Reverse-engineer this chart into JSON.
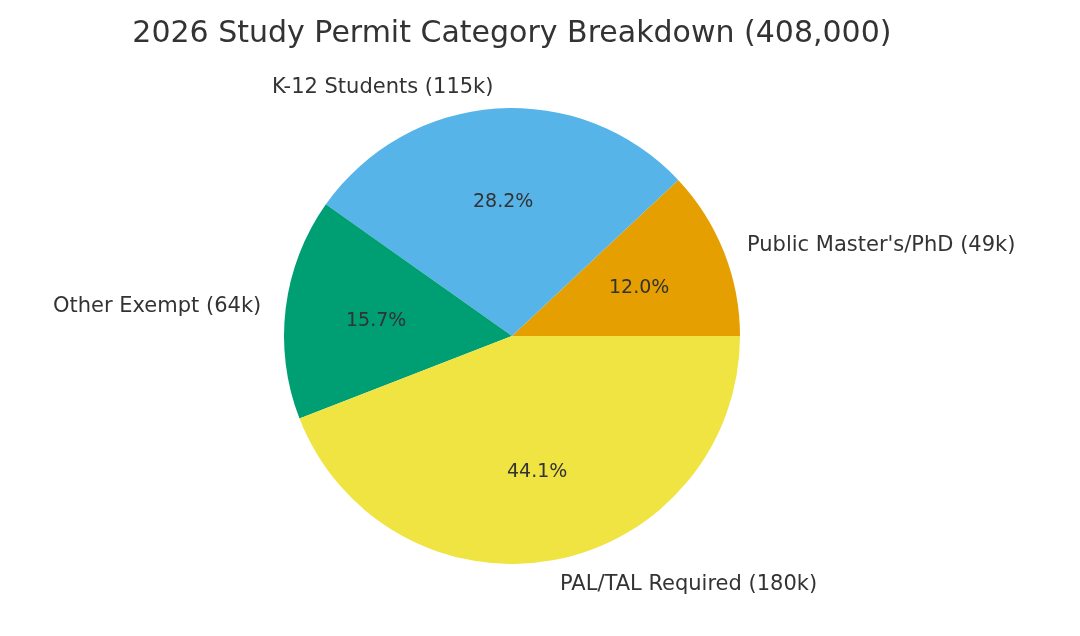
{
  "chart_data": {
    "type": "pie",
    "title": "2026 Study Permit Category Breakdown (408,000)",
    "categories": [
      "Public Master's/PhD (49k)",
      "K-12 Students (115k)",
      "Other Exempt (64k)",
      "PAL/TAL Required (180k)"
    ],
    "values": [
      12.0,
      28.2,
      15.7,
      44.1
    ],
    "value_labels": [
      "12.0%",
      "28.2%",
      "15.7%",
      "44.1%"
    ],
    "colors": [
      "#e69f00",
      "#56b4e9",
      "#009e73",
      "#f0e442"
    ]
  }
}
